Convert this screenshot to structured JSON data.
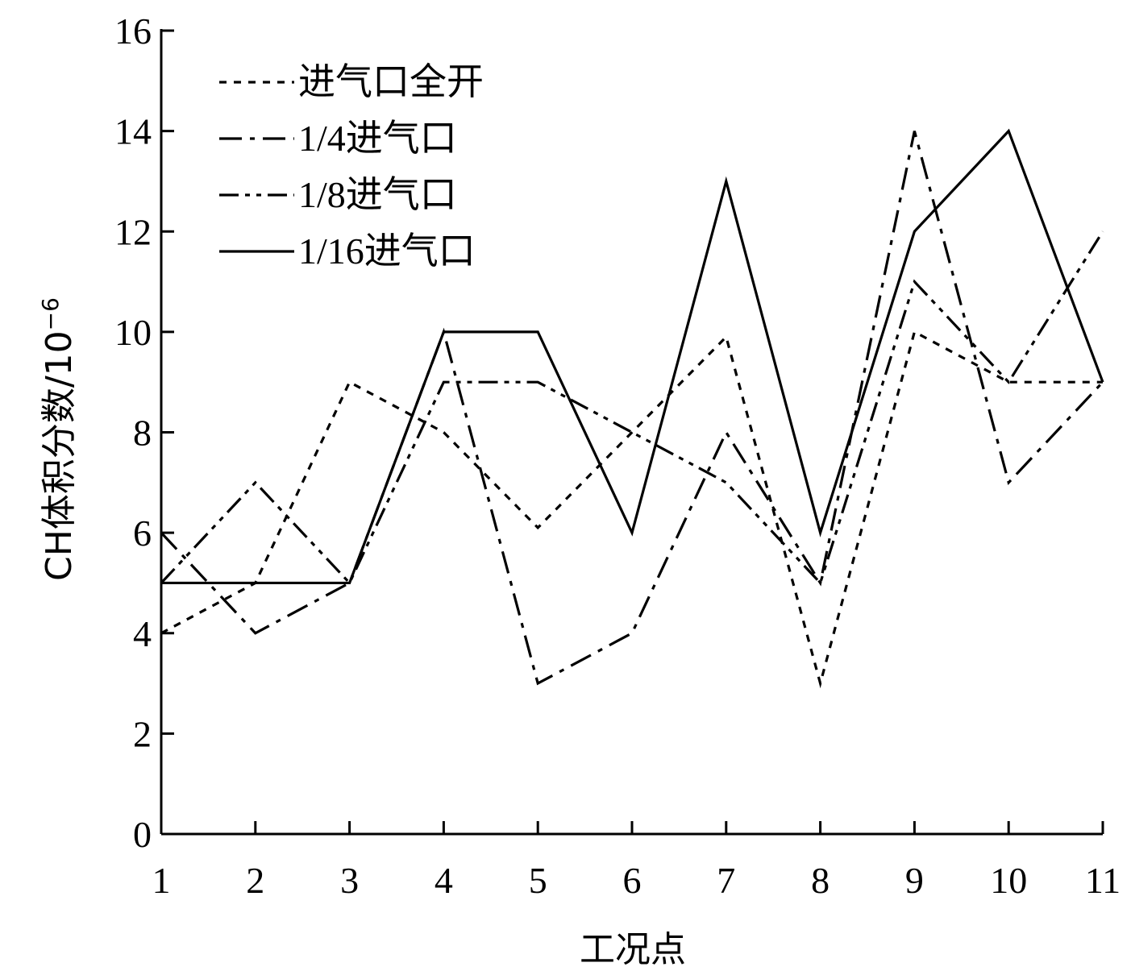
{
  "chart_data": {
    "type": "line",
    "title": "",
    "xlabel": "工况点",
    "ylabel": "CH体积分数/10",
    "ylabel_exponent": "−6",
    "x": [
      1,
      2,
      3,
      4,
      5,
      6,
      7,
      8,
      9,
      10,
      11
    ],
    "xlim": [
      1,
      11
    ],
    "ylim": [
      0,
      16
    ],
    "yticks": [
      0,
      2,
      4,
      6,
      8,
      10,
      12,
      14,
      16
    ],
    "grid": false,
    "legend_position": "top-left",
    "series": [
      {
        "name": "进气口全开",
        "dash": "dotted",
        "values": [
          4,
          5,
          9,
          8,
          6.1,
          8,
          9.9,
          3,
          10,
          9,
          9
        ]
      },
      {
        "name": "1/4进气口",
        "dash": "dash-dot",
        "values": [
          6,
          4,
          5,
          10,
          3,
          4,
          8,
          5,
          14,
          7,
          9
        ]
      },
      {
        "name": "1/8进气口",
        "dash": "dash-dot-dot",
        "values": [
          5,
          7,
          5,
          9,
          9,
          8,
          7,
          5,
          11,
          9,
          12
        ]
      },
      {
        "name": "1/16进气口",
        "dash": "solid",
        "values": [
          5,
          5,
          5,
          10,
          10,
          6,
          13,
          6,
          12,
          14,
          9
        ]
      }
    ]
  }
}
